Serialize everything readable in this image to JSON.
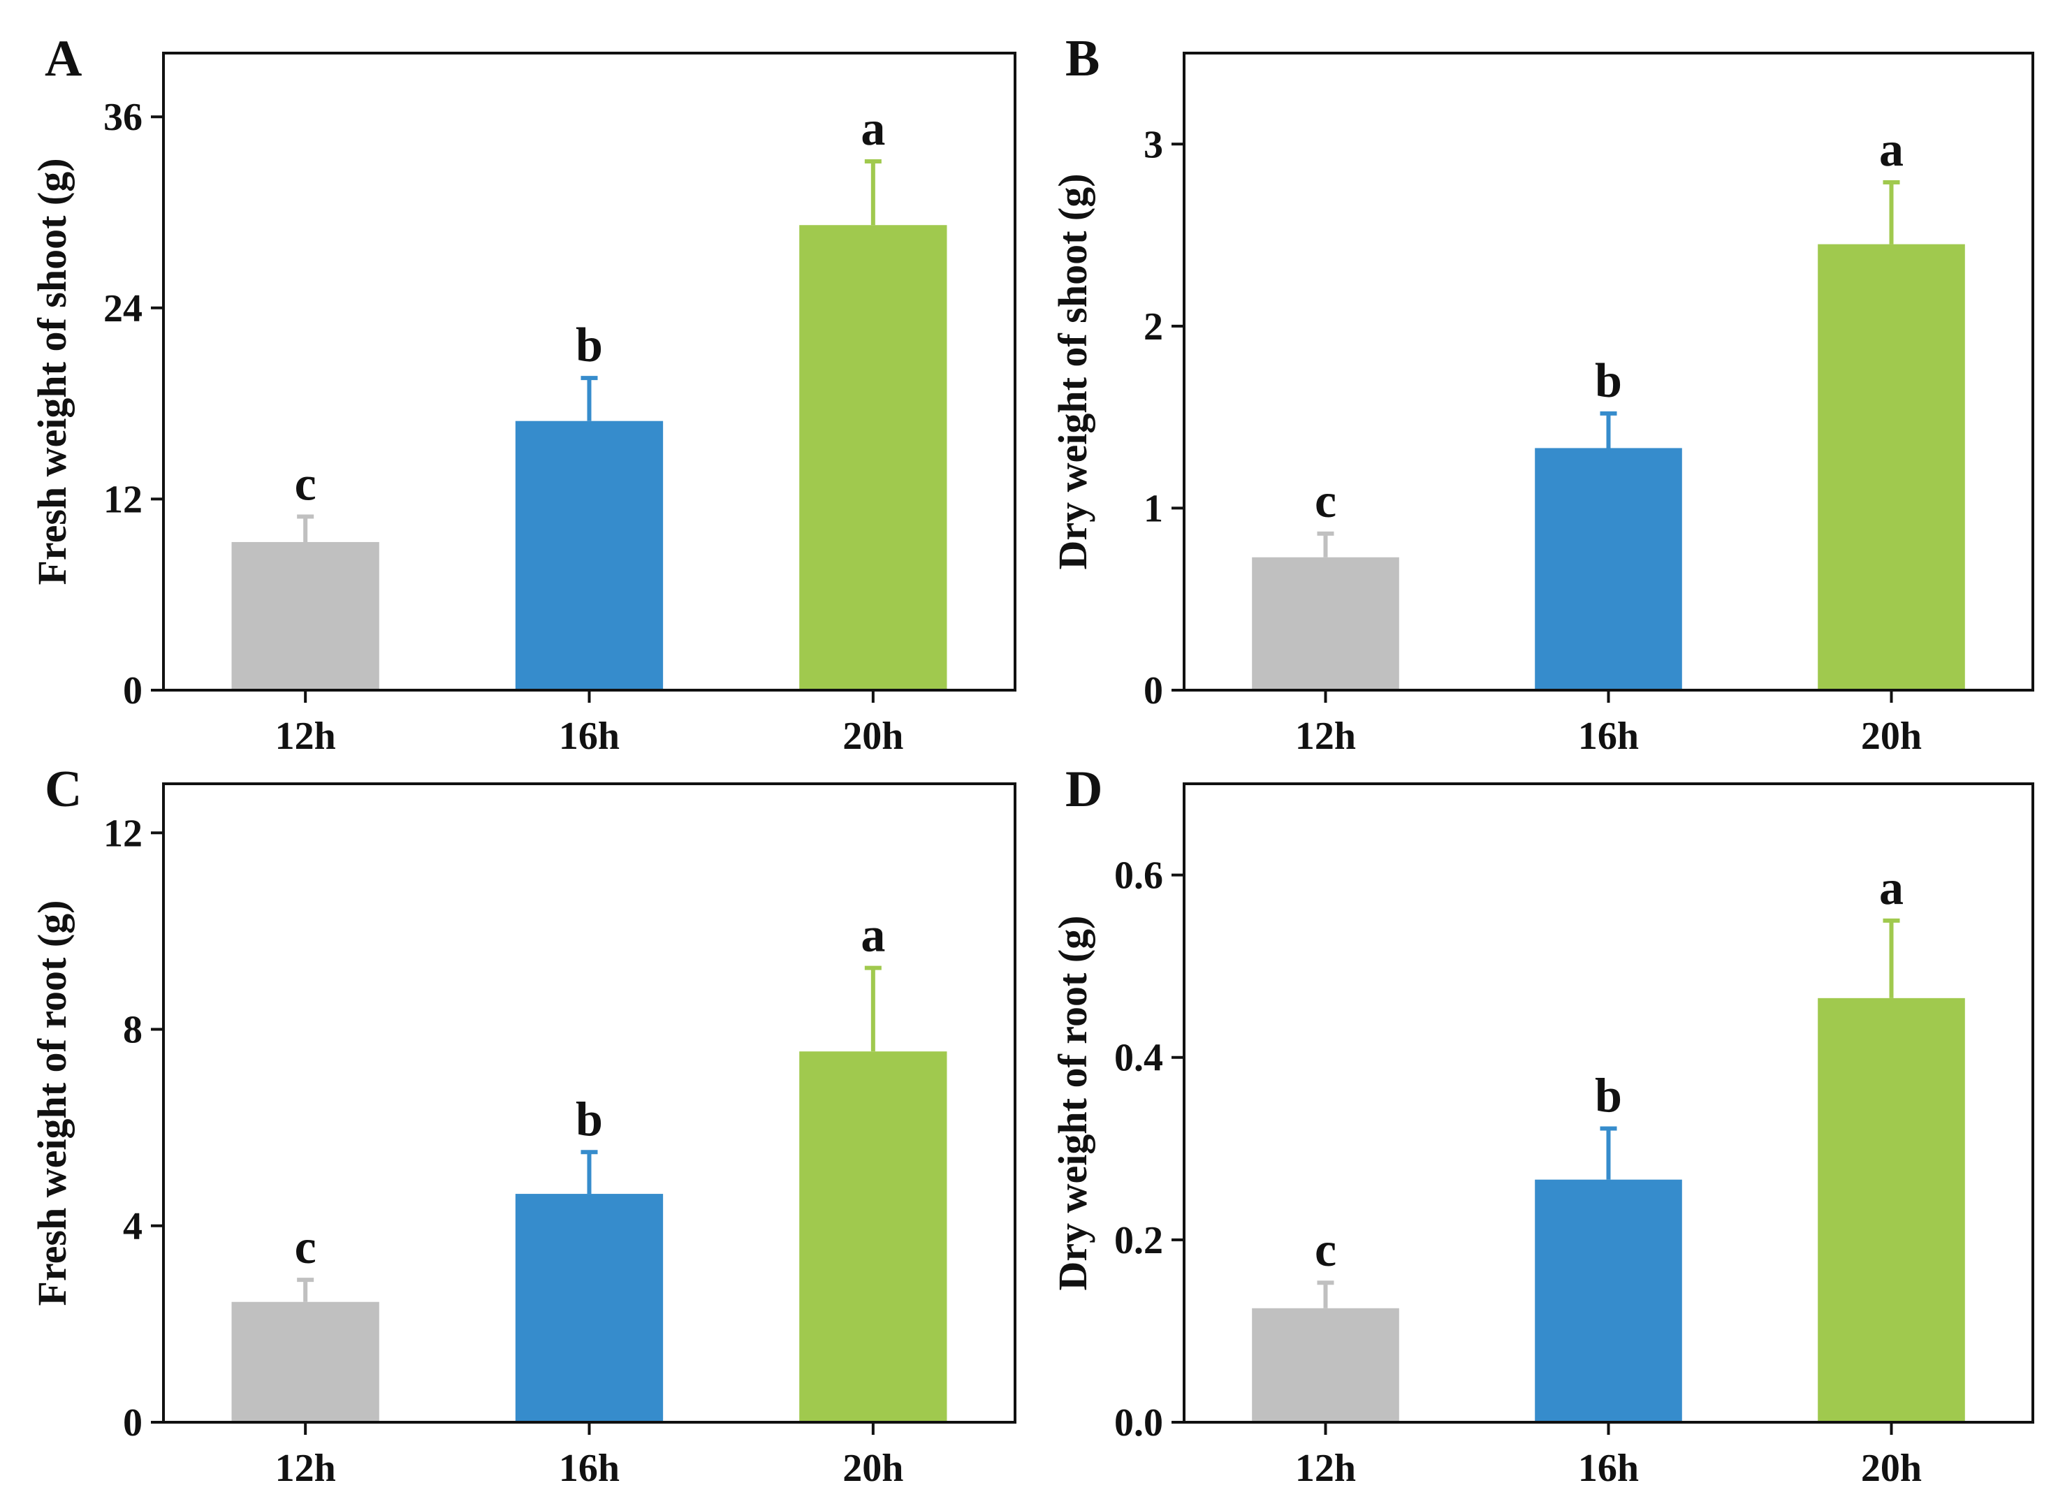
{
  "chart_data": [
    {
      "panel": "A",
      "type": "bar",
      "categories": [
        "12h",
        "16h",
        "20h"
      ],
      "values": [
        9.3,
        16.9,
        29.2
      ],
      "errors": [
        1.6,
        2.7,
        4.0
      ],
      "significance": [
        "c",
        "b",
        "a"
      ],
      "colors": [
        "#c0c0c0",
        "#368ccc",
        "#a0c94e"
      ],
      "ylabel": "Fresh weight of shoot (g)",
      "ylim": [
        0,
        40
      ],
      "yticks": [
        0,
        12,
        24,
        36
      ],
      "ytick_labels": [
        "0",
        "12",
        "24",
        "36"
      ]
    },
    {
      "panel": "B",
      "type": "bar",
      "categories": [
        "12h",
        "16h",
        "20h"
      ],
      "values": [
        0.73,
        1.33,
        2.45
      ],
      "errors": [
        0.13,
        0.19,
        0.34
      ],
      "significance": [
        "c",
        "b",
        "a"
      ],
      "colors": [
        "#c0c0c0",
        "#368ccc",
        "#a0c94e"
      ],
      "ylabel": "Dry weight of shoot (g)",
      "ylim": [
        0,
        3.5
      ],
      "yticks": [
        0,
        1,
        2,
        3
      ],
      "ytick_labels": [
        "0",
        "1",
        "2",
        "3"
      ]
    },
    {
      "panel": "C",
      "type": "bar",
      "categories": [
        "12h",
        "16h",
        "20h"
      ],
      "values": [
        2.45,
        4.65,
        7.55
      ],
      "errors": [
        0.45,
        0.85,
        1.7
      ],
      "significance": [
        "c",
        "b",
        "a"
      ],
      "colors": [
        "#c0c0c0",
        "#368ccc",
        "#a0c94e"
      ],
      "ylabel": "Fresh weight of root (g)",
      "ylim": [
        0,
        13
      ],
      "yticks": [
        0,
        4,
        8,
        12
      ],
      "ytick_labels": [
        "0",
        "4",
        "8",
        "12"
      ]
    },
    {
      "panel": "D",
      "type": "bar",
      "categories": [
        "12h",
        "16h",
        "20h"
      ],
      "values": [
        0.125,
        0.266,
        0.465
      ],
      "errors": [
        0.028,
        0.056,
        0.085
      ],
      "significance": [
        "c",
        "b",
        "a"
      ],
      "colors": [
        "#c0c0c0",
        "#368ccc",
        "#a0c94e"
      ],
      "ylabel": "Dry weight of root (g)",
      "ylim": [
        0,
        0.7
      ],
      "yticks": [
        0,
        0.2,
        0.4,
        0.6
      ],
      "ytick_labels": [
        "0.0",
        "0.2",
        "0.4",
        "0.6"
      ]
    }
  ]
}
